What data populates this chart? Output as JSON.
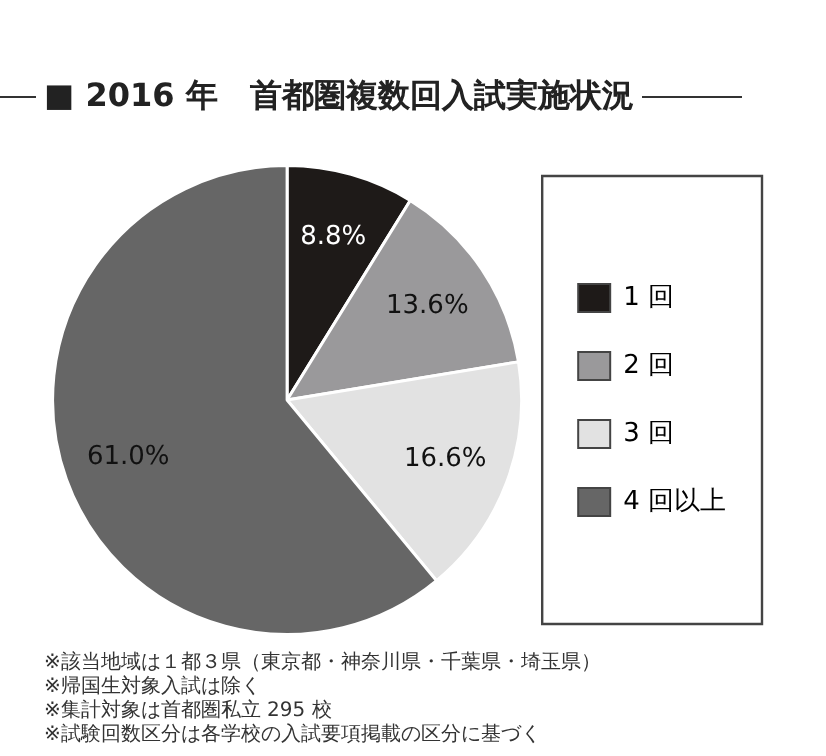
{
  "chart_data": {
    "type": "pie",
    "title": "■ 2016 年　首都圏複数回入試実施状況",
    "categories": [
      "1 回",
      "2 回",
      "3 回",
      "4 回以上"
    ],
    "values": [
      8.8,
      13.6,
      16.6,
      61.0
    ],
    "value_labels": [
      "8.8%",
      "13.6%",
      "16.6%",
      "61.0%"
    ],
    "colors": [
      "#1e1a18",
      "#9a999b",
      "#e2e2e2",
      "#666666"
    ],
    "legend": "right",
    "annotations": [
      "※該当地域は１都３県（東京都・神奈川県・千葉県・埼玉県）",
      "※帰国生対象入試は除く",
      "※集計対象は首都圏私立 295 校",
      "※試験回数区分は各学校の入試要項掲載の区分に基づく"
    ]
  }
}
